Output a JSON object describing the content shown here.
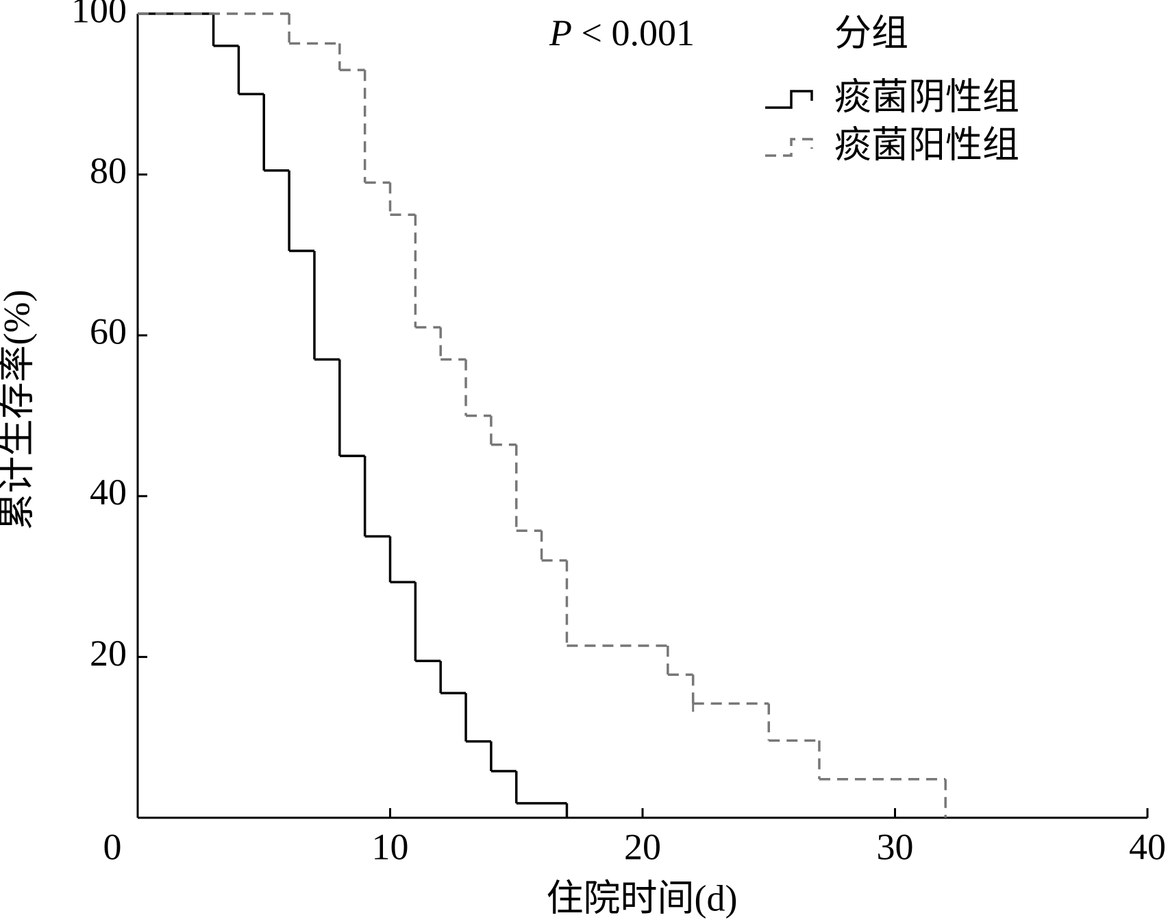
{
  "chart_data": {
    "type": "step",
    "annotation": {
      "symbol": "P",
      "text": "< 0.001"
    },
    "x_label": "住院时间(d)",
    "y_label": "累计生存率(%)",
    "legend_title": "分组",
    "xlim": [
      0,
      40
    ],
    "xticks": [
      0,
      10,
      20,
      30,
      40
    ],
    "ylim": [
      0,
      100
    ],
    "yticks": [
      20,
      40,
      60,
      80,
      100
    ],
    "series": [
      {
        "name": "痰菌阴性组",
        "color": "#000000",
        "dashed": false,
        "x": [
          0,
          3,
          4,
          5,
          6,
          7,
          8,
          9,
          10,
          11,
          12,
          13,
          14,
          15,
          17
        ],
        "values": [
          100,
          96,
          90,
          80.5,
          70.5,
          57,
          45,
          35,
          29.3,
          19.5,
          15.5,
          9.5,
          5.8,
          1.8,
          0
        ]
      },
      {
        "name": "痰菌阳性组",
        "color": "#777777",
        "dashed": true,
        "x": [
          0,
          6,
          8,
          9,
          10,
          11,
          12,
          13,
          14,
          15,
          16,
          17,
          21,
          22,
          25,
          27,
          32
        ],
        "values": [
          100,
          96.3,
          93,
          79,
          75,
          61,
          57,
          50,
          46.4,
          35.7,
          32,
          21.4,
          17.8,
          14.2,
          9.6,
          4.8,
          0
        ],
        "censor_x": [
          22
        ]
      }
    ]
  }
}
